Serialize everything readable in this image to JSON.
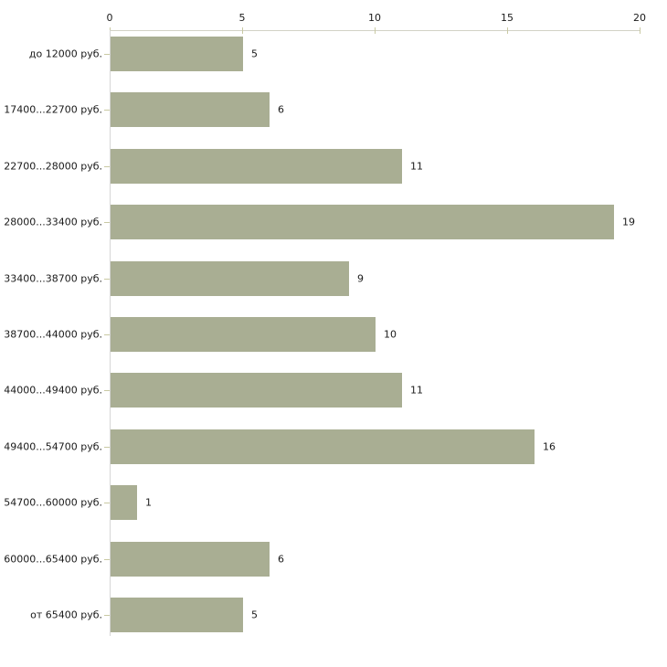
{
  "chart_data": {
    "type": "bar",
    "orientation": "horizontal",
    "title": "",
    "xlabel": "",
    "ylabel": "",
    "categories": [
      "до 12000 руб.",
      "17400...22700 руб.",
      "22700...28000 руб.",
      "28000...33400 руб.",
      "33400...38700 руб.",
      "38700...44000 руб.",
      "44000...49400 руб.",
      "49400...54700 руб.",
      "54700...60000 руб.",
      "60000...65400 руб.",
      "от 65400 руб."
    ],
    "values": [
      5,
      6,
      11,
      19,
      9,
      10,
      11,
      16,
      1,
      6,
      5
    ],
    "xlim": [
      0,
      20
    ],
    "x_ticks": [
      0,
      5,
      10,
      15,
      20
    ],
    "grid": false,
    "legend": false,
    "bar_color": "#a9ae93",
    "axis_line_color": "#d2d2c6",
    "tick_mark_color": "#c9c9a3",
    "text_color": "#1a1a1a"
  }
}
